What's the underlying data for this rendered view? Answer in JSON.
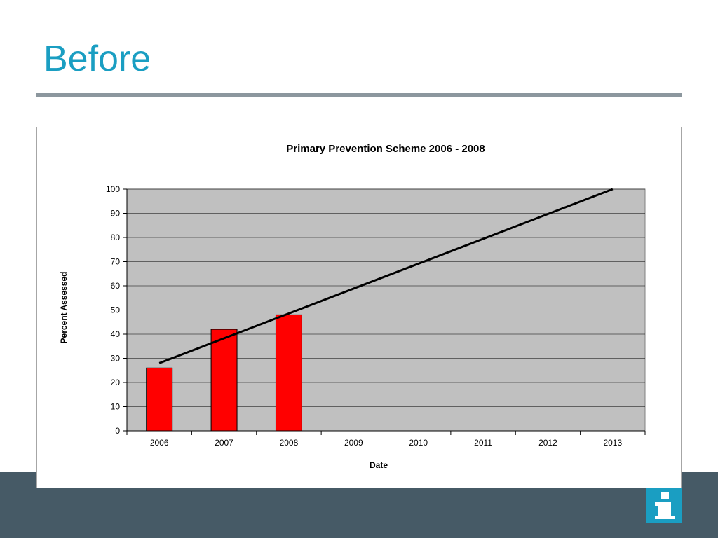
{
  "slide": {
    "title": "Before",
    "accent_color": "#1a9ec2",
    "footer_color": "#465a66",
    "info_icon": "info-icon"
  },
  "chart_data": {
    "type": "bar",
    "title": "Primary Prevention Scheme 2006 - 2008",
    "xlabel": "Date",
    "ylabel": "Percent Assessed",
    "categories": [
      "2006",
      "2007",
      "2008",
      "2009",
      "2010",
      "2011",
      "2012",
      "2013"
    ],
    "series": [
      {
        "values": [
          26,
          42,
          48,
          null,
          null,
          null,
          null,
          null
        ],
        "color": "#ff0000"
      }
    ],
    "trendline": {
      "type": "linear",
      "start": {
        "x": "2006",
        "y": 28
      },
      "end": {
        "x": "2013",
        "y": 100
      },
      "color": "#000000"
    },
    "ylim": [
      0,
      100
    ],
    "yticks": [
      0,
      10,
      20,
      30,
      40,
      50,
      60,
      70,
      80,
      90,
      100
    ],
    "grid": true,
    "plot_background": "#c0c0c0",
    "legend": "none"
  }
}
